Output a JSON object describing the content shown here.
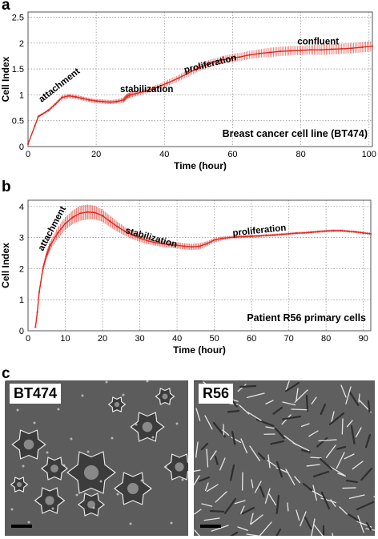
{
  "panels": {
    "a": "a",
    "b": "b",
    "c": "c"
  },
  "chart_data": [
    {
      "type": "line",
      "panel": "a",
      "xlabel": "Time (hour)",
      "ylabel": "Cell Index",
      "xlim": [
        0,
        101
      ],
      "ylim": [
        0,
        2.6
      ],
      "xticks": [
        0,
        20,
        40,
        60,
        80,
        100
      ],
      "yticks": [
        0,
        0.5,
        1,
        1.5,
        2,
        2.5
      ],
      "xtick_labels": [
        "0",
        "20",
        "40",
        "60",
        "80",
        "100"
      ],
      "ytick_labels": [
        "0",
        "0.5",
        "1",
        "1.5",
        "2",
        "2.5"
      ],
      "grid": true,
      "color": "#e0281e",
      "annotation": "Breast cancer cell line (BT474)",
      "phases": [
        {
          "text": "attachment",
          "x": 4,
          "y": 0.85,
          "angle": -38
        },
        {
          "text": "stabilization",
          "x": 27,
          "y": 1.05,
          "angle": 0
        },
        {
          "text": "proliferation",
          "x": 46,
          "y": 1.42,
          "angle": -14
        },
        {
          "text": "confluent",
          "x": 79,
          "y": 1.97,
          "angle": 0
        }
      ],
      "series": [
        {
          "x": [
            0,
            2,
            3,
            4,
            6,
            8,
            10,
            12,
            14,
            16,
            18,
            20,
            22,
            24,
            26,
            28,
            29,
            30,
            32,
            35,
            38,
            41,
            44,
            47,
            50,
            53,
            56,
            59,
            62,
            65,
            68,
            71,
            74,
            77,
            80,
            83,
            86,
            89,
            92,
            95,
            98,
            101
          ],
          "y": [
            0.05,
            0.4,
            0.58,
            0.62,
            0.7,
            0.82,
            0.95,
            0.98,
            0.96,
            0.93,
            0.9,
            0.88,
            0.87,
            0.86,
            0.87,
            0.9,
            0.97,
            1.0,
            1.03,
            1.08,
            1.15,
            1.23,
            1.32,
            1.42,
            1.52,
            1.6,
            1.66,
            1.7,
            1.73,
            1.77,
            1.8,
            1.82,
            1.84,
            1.85,
            1.86,
            1.87,
            1.87,
            1.88,
            1.89,
            1.9,
            1.92,
            1.94
          ],
          "err": [
            0,
            0.02,
            0.02,
            0.02,
            0.03,
            0.03,
            0.04,
            0.04,
            0.04,
            0.04,
            0.04,
            0.04,
            0.04,
            0.04,
            0.04,
            0.05,
            0.05,
            0.05,
            0.05,
            0.05,
            0.05,
            0.06,
            0.06,
            0.07,
            0.07,
            0.07,
            0.07,
            0.08,
            0.08,
            0.08,
            0.08,
            0.09,
            0.09,
            0.09,
            0.09,
            0.09,
            0.1,
            0.1,
            0.1,
            0.1,
            0.1,
            0.1
          ]
        }
      ]
    },
    {
      "type": "line",
      "panel": "b",
      "xlabel": "Time (hour)",
      "ylabel": "Cell Index",
      "xlim": [
        0,
        92
      ],
      "ylim": [
        0,
        4.2
      ],
      "xticks": [
        0,
        10,
        20,
        30,
        40,
        50,
        60,
        70,
        80,
        90
      ],
      "yticks": [
        0,
        1,
        2,
        3,
        4
      ],
      "xtick_labels": [
        "0",
        "10",
        "20",
        "30",
        "40",
        "50",
        "60",
        "70",
        "80",
        "90"
      ],
      "ytick_labels": [
        "0",
        "1",
        "2",
        "3",
        "4"
      ],
      "grid": true,
      "color": "#e0281e",
      "annotation": "Patient R56 primary cells",
      "phases": [
        {
          "text": "attachment",
          "x": 4,
          "y": 2.55,
          "angle": -62
        },
        {
          "text": "stabilization",
          "x": 26,
          "y": 3.15,
          "angle": 16
        },
        {
          "text": "proliferation",
          "x": 55,
          "y": 3.05,
          "angle": -6
        }
      ],
      "series": [
        {
          "x": [
            2,
            2.5,
            3,
            4,
            5,
            6,
            8,
            10,
            12,
            14,
            16,
            18,
            20,
            22,
            24,
            26,
            28,
            30,
            32,
            34,
            36,
            38,
            40,
            42,
            44,
            46,
            48,
            50,
            52,
            54,
            56,
            58,
            60,
            62,
            64,
            66,
            68,
            70,
            72,
            74,
            76,
            78,
            80,
            82,
            84,
            86,
            88,
            90,
            92
          ],
          "y": [
            0.12,
            0.6,
            1.25,
            2.0,
            2.45,
            2.75,
            3.15,
            3.45,
            3.65,
            3.78,
            3.82,
            3.8,
            3.7,
            3.52,
            3.35,
            3.2,
            3.08,
            2.98,
            2.9,
            2.84,
            2.8,
            2.77,
            2.75,
            2.72,
            2.7,
            2.72,
            2.8,
            2.92,
            2.97,
            3.0,
            3.02,
            3.03,
            3.04,
            3.05,
            3.07,
            3.08,
            3.1,
            3.12,
            3.14,
            3.15,
            3.17,
            3.19,
            3.21,
            3.22,
            3.22,
            3.2,
            3.18,
            3.15,
            3.12
          ],
          "err": [
            0.02,
            0.05,
            0.08,
            0.1,
            0.12,
            0.14,
            0.18,
            0.2,
            0.22,
            0.24,
            0.24,
            0.22,
            0.2,
            0.18,
            0.16,
            0.14,
            0.13,
            0.12,
            0.11,
            0.1,
            0.1,
            0.1,
            0.1,
            0.1,
            0.1,
            0.1,
            0.08,
            0.07,
            0.06,
            0.05,
            0.05,
            0.05,
            0.05,
            0.04,
            0.04,
            0.04,
            0.04,
            0.04,
            0.04,
            0.04,
            0.04,
            0.04,
            0.04,
            0.04,
            0.04,
            0.04,
            0.04,
            0.04,
            0.04
          ]
        }
      ]
    }
  ],
  "micrographs": [
    {
      "label": "BT474"
    },
    {
      "label": "R56"
    }
  ]
}
